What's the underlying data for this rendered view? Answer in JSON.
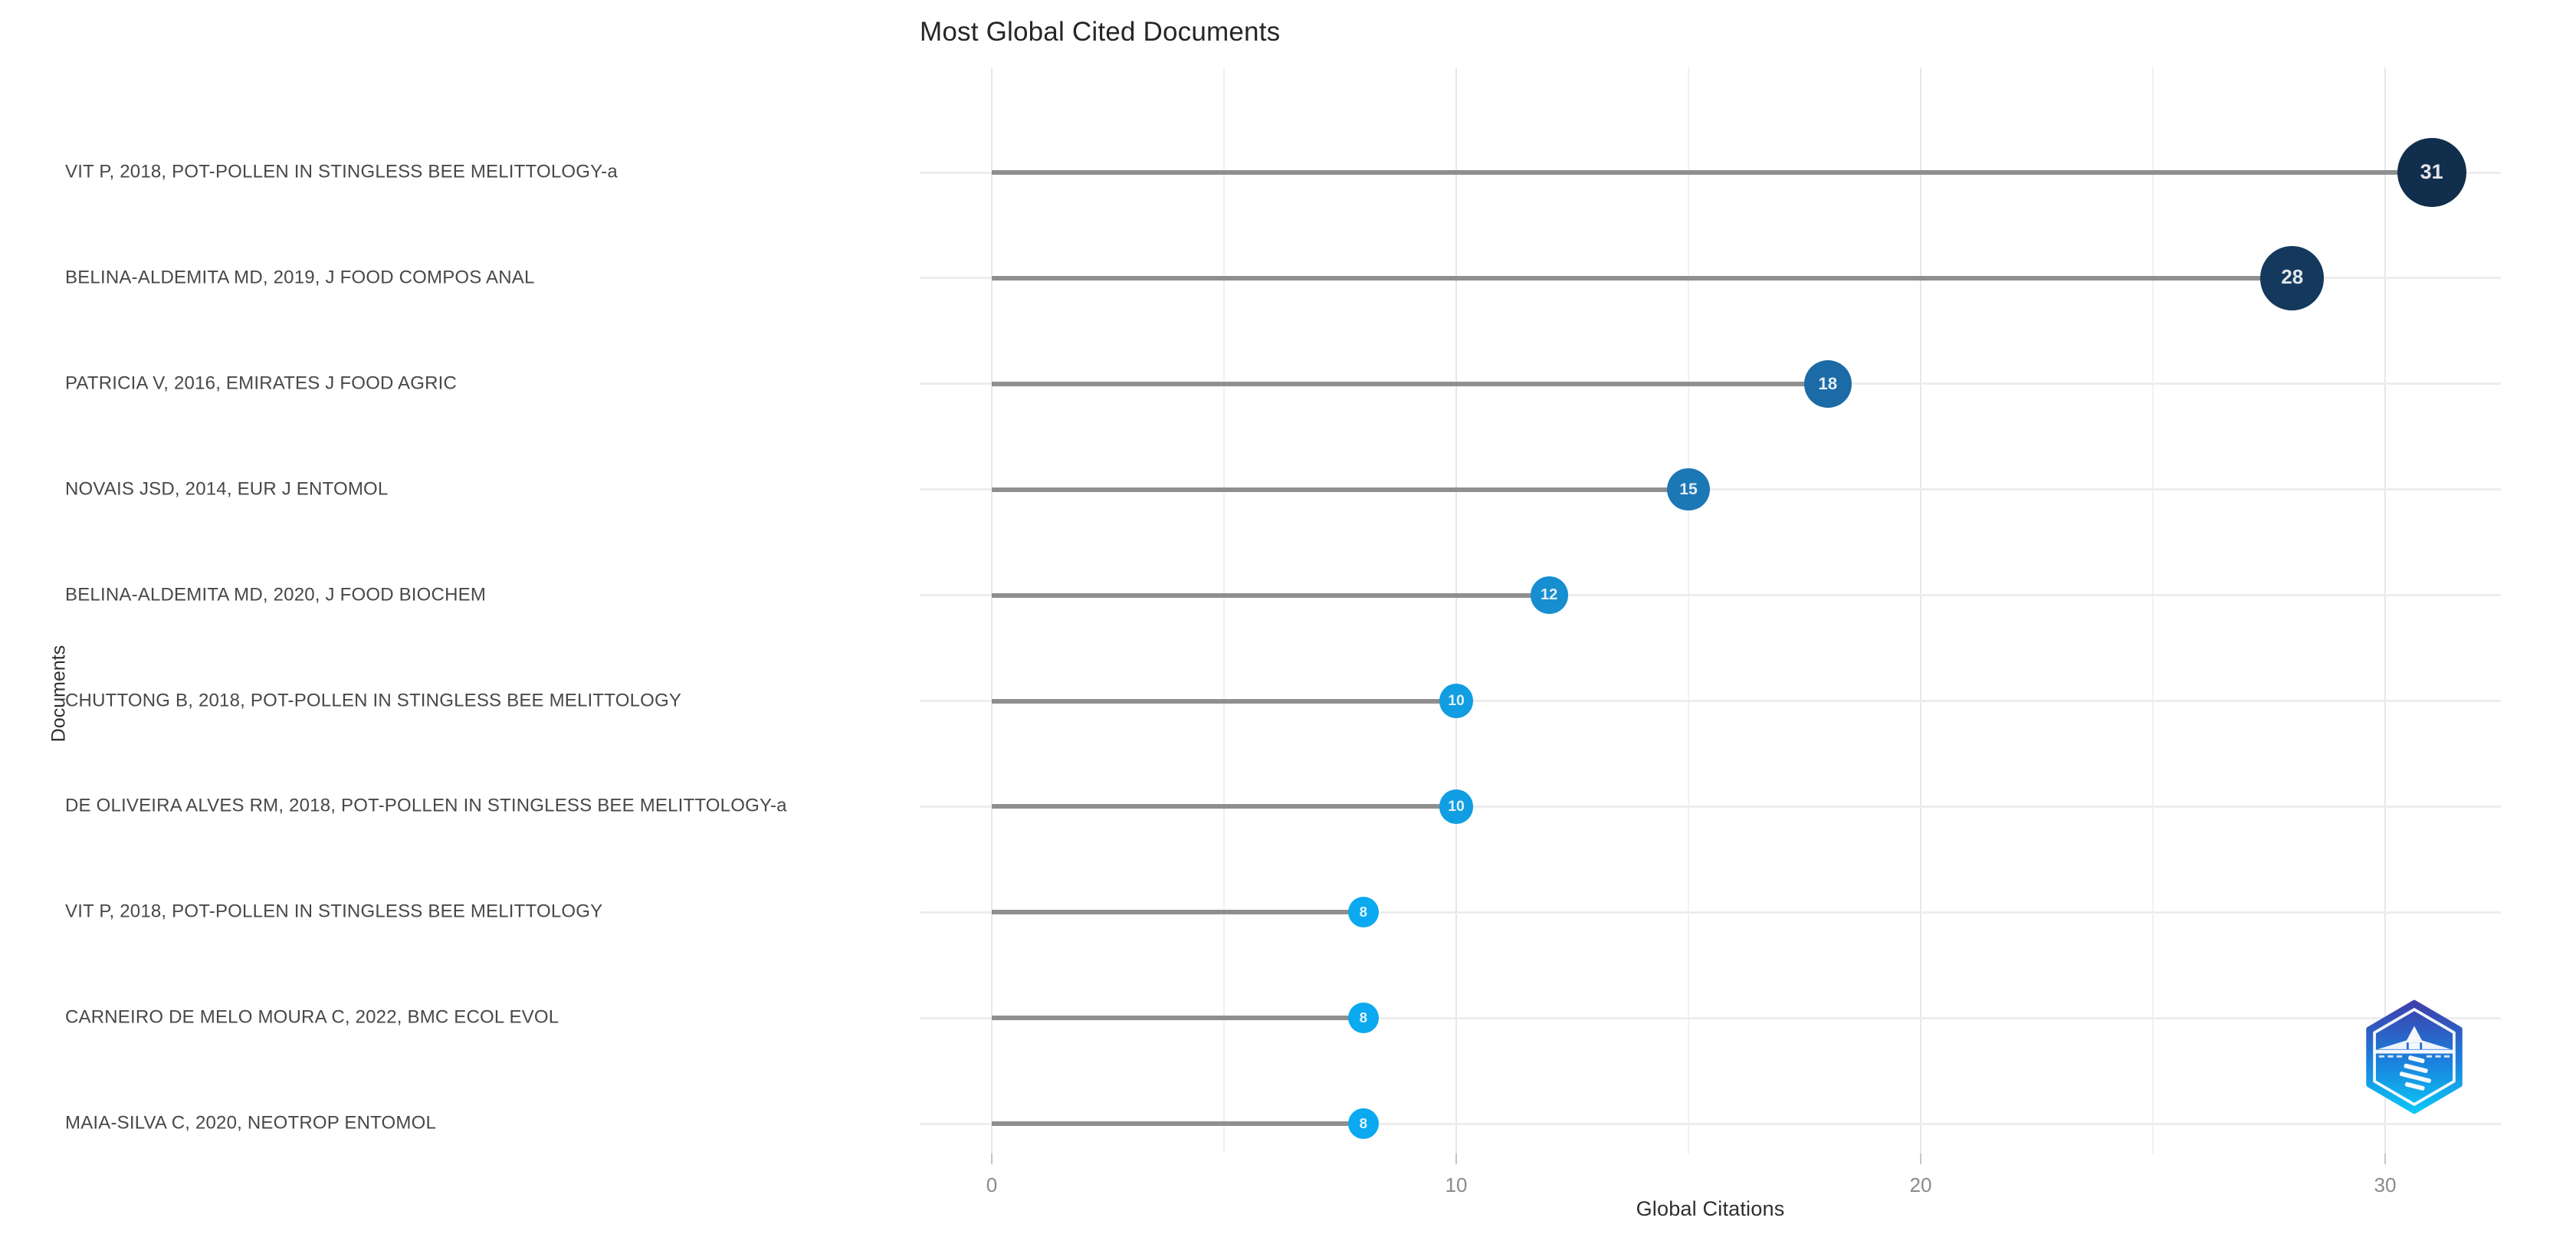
{
  "chart": {
    "title": "Most Global Cited Documents"
  },
  "chart_data": {
    "type": "scatter",
    "subtype": "lollipop-dot-plot",
    "orientation": "horizontal",
    "title": "Most Global Cited Documents",
    "xlabel": "Global Citations",
    "ylabel": "Documents",
    "x_ticks": [
      0,
      10,
      20,
      30
    ],
    "x_gridlines": [
      0,
      5,
      10,
      15,
      20,
      25,
      30
    ],
    "xlim": [
      -1.5,
      32.5
    ],
    "grid": true,
    "legend": "none",
    "categories": [
      "VIT P, 2018, POT-POLLEN IN STINGLESS BEE MELITTOLOGY-a",
      "BELINA-ALDEMITA MD, 2019, J FOOD COMPOS ANAL",
      "PATRICIA V, 2016, EMIRATES J FOOD AGRIC",
      "NOVAIS JSD, 2014, EUR J ENTOMOL",
      "BELINA-ALDEMITA MD, 2020, J FOOD BIOCHEM",
      "CHUTTONG B, 2018, POT-POLLEN IN STINGLESS BEE MELITTOLOGY",
      "DE OLIVEIRA ALVES RM, 2018, POT-POLLEN IN STINGLESS BEE MELITTOLOGY-a",
      "VIT P, 2018, POT-POLLEN IN STINGLESS BEE MELITTOLOGY",
      "CARNEIRO DE MELO MOURA C, 2022, BMC ECOL EVOL",
      "MAIA-SILVA C, 2020, NEOTROP ENTOMOL"
    ],
    "values": [
      31,
      28,
      18,
      15,
      12,
      10,
      10,
      8,
      8,
      8
    ],
    "point_colors": [
      "#112e4c",
      "#15395c",
      "#1c6aa6",
      "#1c77b5",
      "#178ed0",
      "#109de2",
      "#109de2",
      "#0ba9ef",
      "#0ba9ef",
      "#0ba9ef"
    ],
    "stem_color": "#8f8f8f",
    "value_label_color": "#ffffff"
  },
  "logo": {
    "name": "bibliometrix-lighthouse-badge",
    "gradient": [
      "#3e3fab",
      "#1b82dd",
      "#0bc6f5"
    ]
  }
}
